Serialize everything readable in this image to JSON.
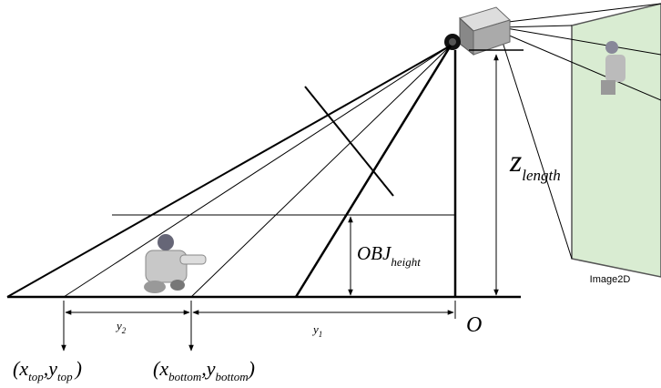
{
  "labels": {
    "image": "Image2D",
    "z": {
      "base": "z",
      "sub": "length"
    },
    "obj": {
      "base": "OBJ",
      "sub": "height"
    },
    "origin": "O",
    "y2": {
      "base": "y",
      "sub": "2"
    },
    "y1": {
      "base": "y",
      "sub": "1"
    },
    "top": {
      "open": "(",
      "x": "x",
      "xsub": "top",
      "comma": ",",
      "y": "y",
      "ysub": "top",
      "close": ")"
    },
    "bottom": {
      "open": "(",
      "x": "x",
      "xsub": "bottom",
      "comma": ",",
      "y": "y",
      "ysub": "bottom",
      "close": ")"
    }
  }
}
